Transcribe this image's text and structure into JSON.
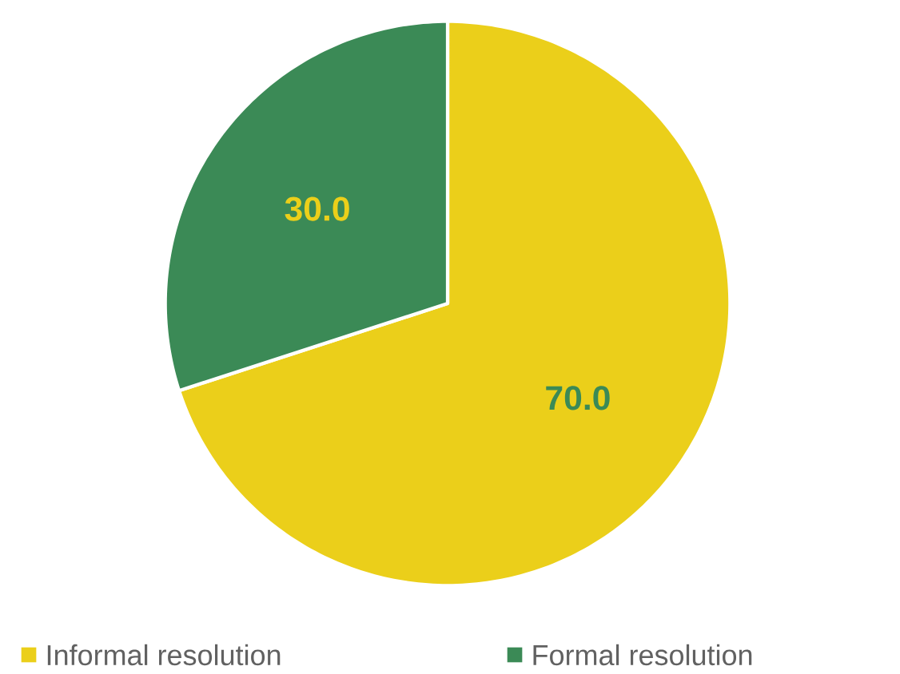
{
  "chart_data": {
    "type": "pie",
    "categories": [
      "Informal resolution",
      "Formal resolution"
    ],
    "values": [
      70.0,
      30.0
    ],
    "colors": [
      "#ebcf1a",
      "#3b8a56"
    ],
    "value_labels": [
      "70.0",
      "30.0"
    ],
    "legend": "bottom"
  }
}
